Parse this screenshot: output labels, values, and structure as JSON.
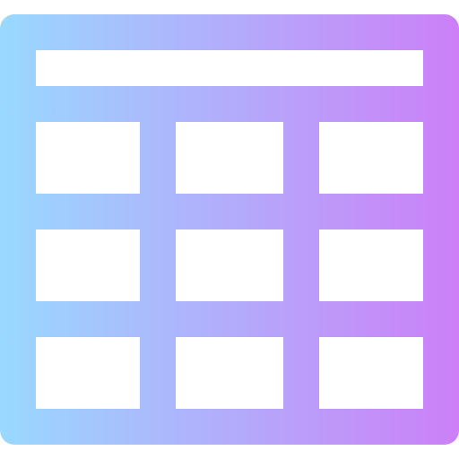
{
  "icon": {
    "name": "table-icon",
    "gradient": {
      "start_color": "#99D9FF",
      "end_color": "#CC7FF7"
    },
    "cell_color": "#FFFFFF",
    "header_rows": 1,
    "body_rows": 3,
    "body_columns": 3
  }
}
